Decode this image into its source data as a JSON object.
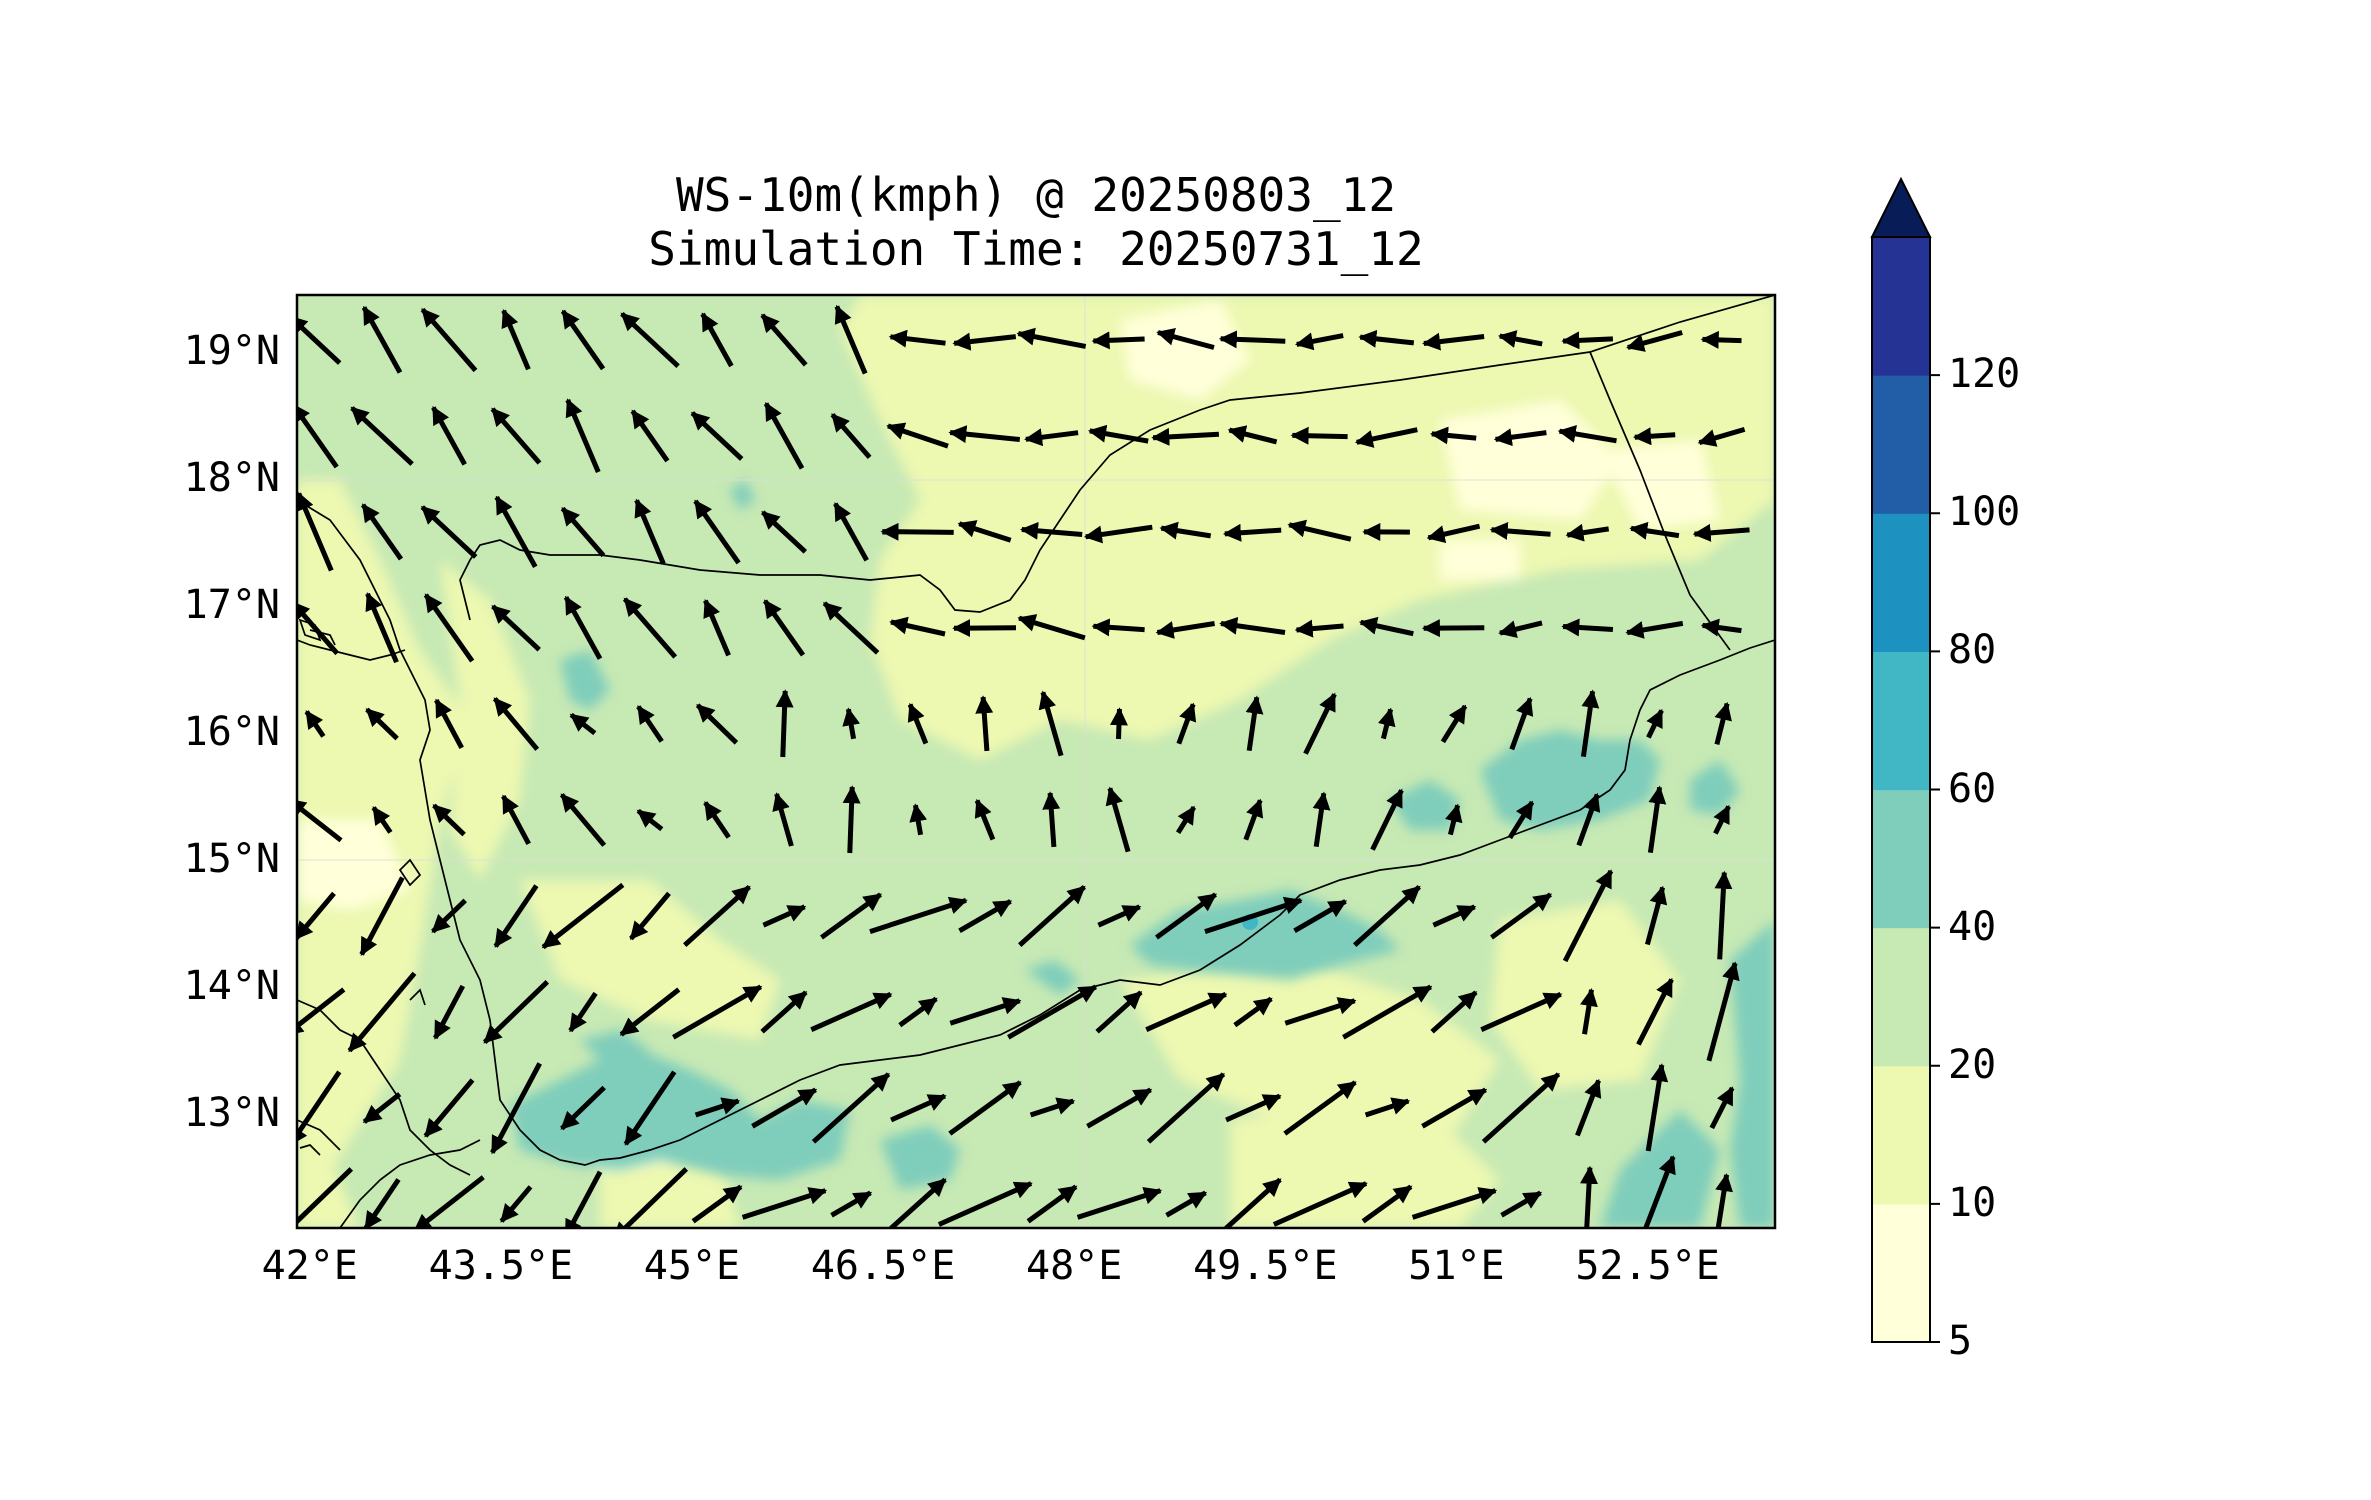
{
  "title": {
    "line1": "WS-10m(kmph) @ 20250803_12",
    "line2": "Simulation Time: 20250731_12"
  },
  "map": {
    "extent": {
      "lon_min": 41.9,
      "lon_max": 53.5,
      "lat_min": 12.1,
      "lat_max": 19.45
    },
    "lon_ticks": [
      {
        "value": 42.0,
        "label": "42°E"
      },
      {
        "value": 43.5,
        "label": "43.5°E"
      },
      {
        "value": 45.0,
        "label": "45°E"
      },
      {
        "value": 46.5,
        "label": "46.5°E"
      },
      {
        "value": 48.0,
        "label": "48°E"
      },
      {
        "value": 49.5,
        "label": "49.5°E"
      },
      {
        "value": 51.0,
        "label": "51°E"
      },
      {
        "value": 52.5,
        "label": "52.5°E"
      }
    ],
    "lat_ticks": [
      {
        "value": 19,
        "label": "19°N"
      },
      {
        "value": 18,
        "label": "18°N"
      },
      {
        "value": 17,
        "label": "17°N"
      },
      {
        "value": 16,
        "label": "16°N"
      },
      {
        "value": 15,
        "label": "15°N"
      },
      {
        "value": 14,
        "label": "14°N"
      },
      {
        "value": 13,
        "label": "13°N"
      }
    ],
    "gridlines": true,
    "arrow_color": "#000000",
    "border_color": "#000000"
  },
  "colorbar": {
    "levels": [
      5,
      10,
      20,
      40,
      60,
      80,
      100,
      120
    ],
    "labels": [
      "5",
      "10",
      "20",
      "40",
      "60",
      "80",
      "100",
      "120"
    ],
    "colors": [
      "#ffffd9",
      "#edf8b1",
      "#c7e9b4",
      "#7fcdbb",
      "#41b6c4",
      "#1d91c0",
      "#225ea8",
      "#253494"
    ],
    "extend_color": "#081d58",
    "extend": "max"
  }
}
